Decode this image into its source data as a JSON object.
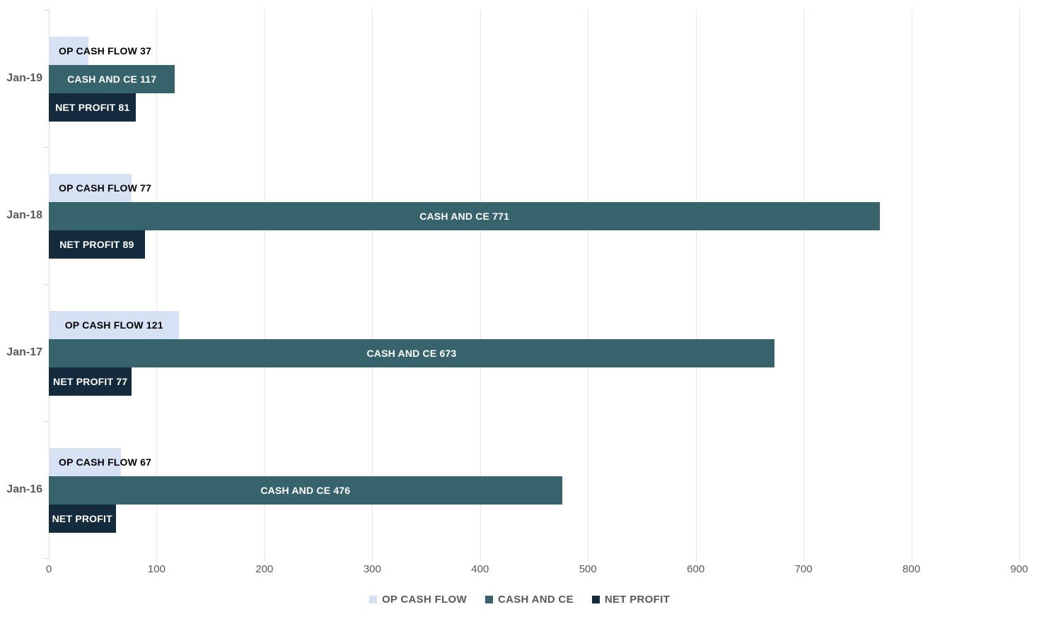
{
  "chart_data": {
    "type": "bar",
    "orientation": "horizontal",
    "title": "",
    "xlabel": "",
    "ylabel": "",
    "xlim": [
      0,
      900
    ],
    "xticks": [
      0,
      100,
      200,
      300,
      400,
      500,
      600,
      700,
      800,
      900
    ],
    "grid": true,
    "legend_position": "bottom",
    "categories": [
      "Jan-19",
      "Jan-18",
      "Jan-17",
      "Jan-16"
    ],
    "series": [
      {
        "name": "OP CASH FLOW",
        "color": "#d6e1f3",
        "label_color": "#000000",
        "values": [
          37,
          77,
          121,
          67
        ],
        "labels": [
          "OP CASH FLOW 37",
          "OP CASH FLOW 77",
          "OP CASH FLOW 121",
          "OP CASH FLOW 67"
        ]
      },
      {
        "name": "CASH AND CE",
        "color": "#37646c",
        "label_color": "#ffffff",
        "values": [
          117,
          771,
          673,
          476
        ],
        "labels": [
          "CASH AND CE 117",
          "CASH AND CE 771",
          "CASH AND CE 673",
          "CASH AND CE 476"
        ]
      },
      {
        "name": "NET PROFIT",
        "color": "#132b3c",
        "label_color": "#ffffff",
        "values": [
          81,
          89,
          77,
          62
        ],
        "labels": [
          "NET PROFIT 81",
          "NET PROFIT 89",
          "NET PROFIT 77",
          "NET PROFIT"
        ]
      }
    ],
    "colors": {
      "gridline": "#e7e7e7",
      "axis_line": "#d9d9d9",
      "axis_text": "#595959"
    },
    "legend": [
      "OP CASH FLOW",
      "CASH AND CE",
      "NET PROFIT"
    ]
  }
}
